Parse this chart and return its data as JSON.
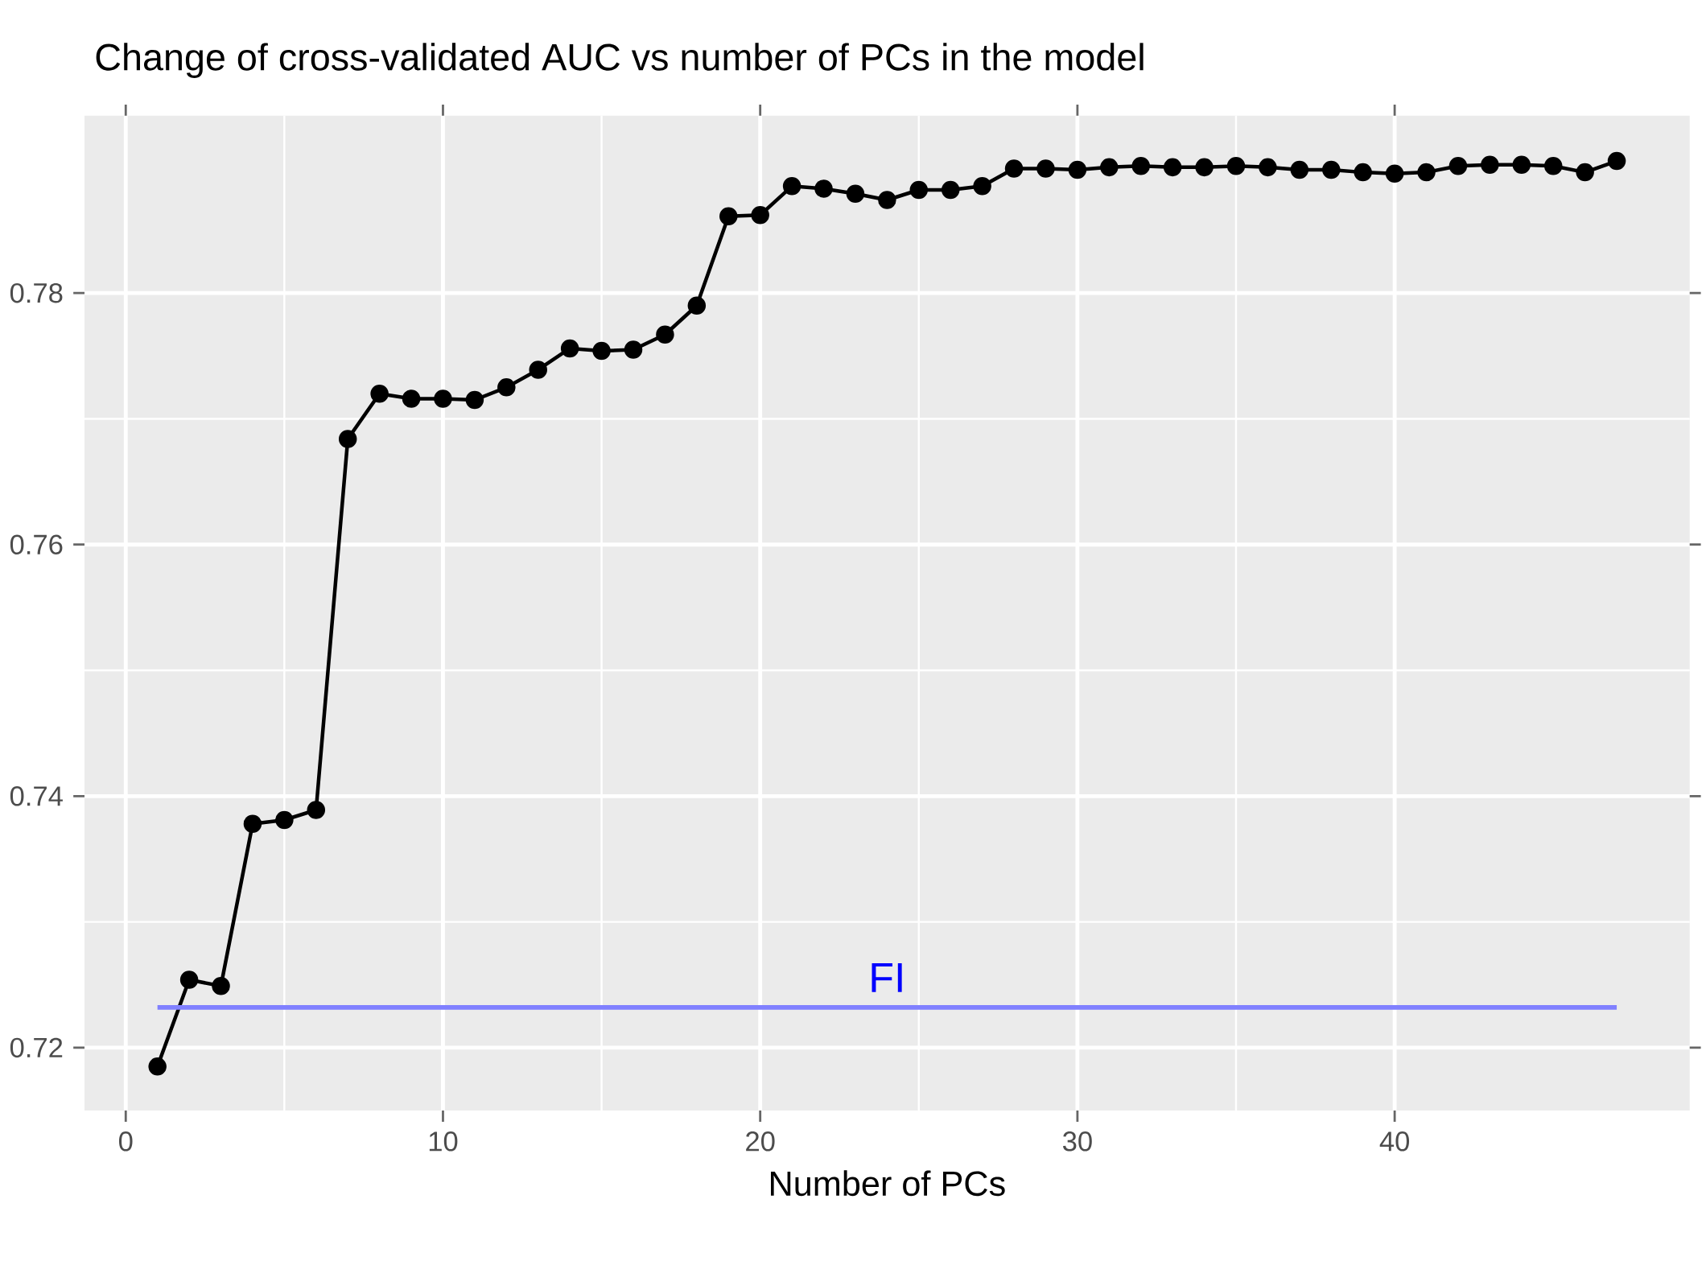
{
  "chart_data": {
    "type": "line",
    "title": "Change of cross-validated AUC vs number of PCs in the model",
    "xlabel": "Number of PCs",
    "x": [
      1,
      2,
      3,
      4,
      5,
      6,
      7,
      8,
      9,
      10,
      11,
      12,
      13,
      14,
      15,
      16,
      17,
      18,
      19,
      20,
      21,
      22,
      23,
      24,
      25,
      26,
      27,
      28,
      29,
      30,
      31,
      32,
      33,
      34,
      35,
      36,
      37,
      38,
      39,
      40,
      41,
      42,
      43,
      44,
      45,
      46,
      47
    ],
    "series": [
      {
        "color": "#000000",
        "marker": "circle",
        "values": [
          0.7185,
          0.7254,
          0.7249,
          0.7378,
          0.7381,
          0.7389,
          0.7684,
          0.772,
          0.7716,
          0.7716,
          0.7715,
          0.7725,
          0.7739,
          0.7756,
          0.7754,
          0.7755,
          0.7767,
          0.779,
          0.7861,
          0.7862,
          0.7885,
          0.7883,
          0.7879,
          0.7874,
          0.7882,
          0.7882,
          0.7885,
          0.7899,
          0.7899,
          0.7898,
          0.79,
          0.7901,
          0.79,
          0.79,
          0.7901,
          0.79,
          0.7898,
          0.7898,
          0.7896,
          0.7895,
          0.7896,
          0.7901,
          0.7902,
          0.7902,
          0.7901,
          0.7896,
          0.7905
        ]
      },
      {
        "name": "FI",
        "color": "#8080ff",
        "marker": "none",
        "x": [
          1,
          47
        ],
        "values": [
          0.7232,
          0.7232
        ]
      }
    ],
    "xlim": [
      -1.3,
      49.3
    ],
    "ylim": [
      0.715,
      0.7941
    ],
    "xticks": [
      0,
      10,
      20,
      30,
      40
    ],
    "yticks": [
      0.72,
      0.74,
      0.76,
      0.78
    ],
    "grid": true,
    "legend": false
  }
}
